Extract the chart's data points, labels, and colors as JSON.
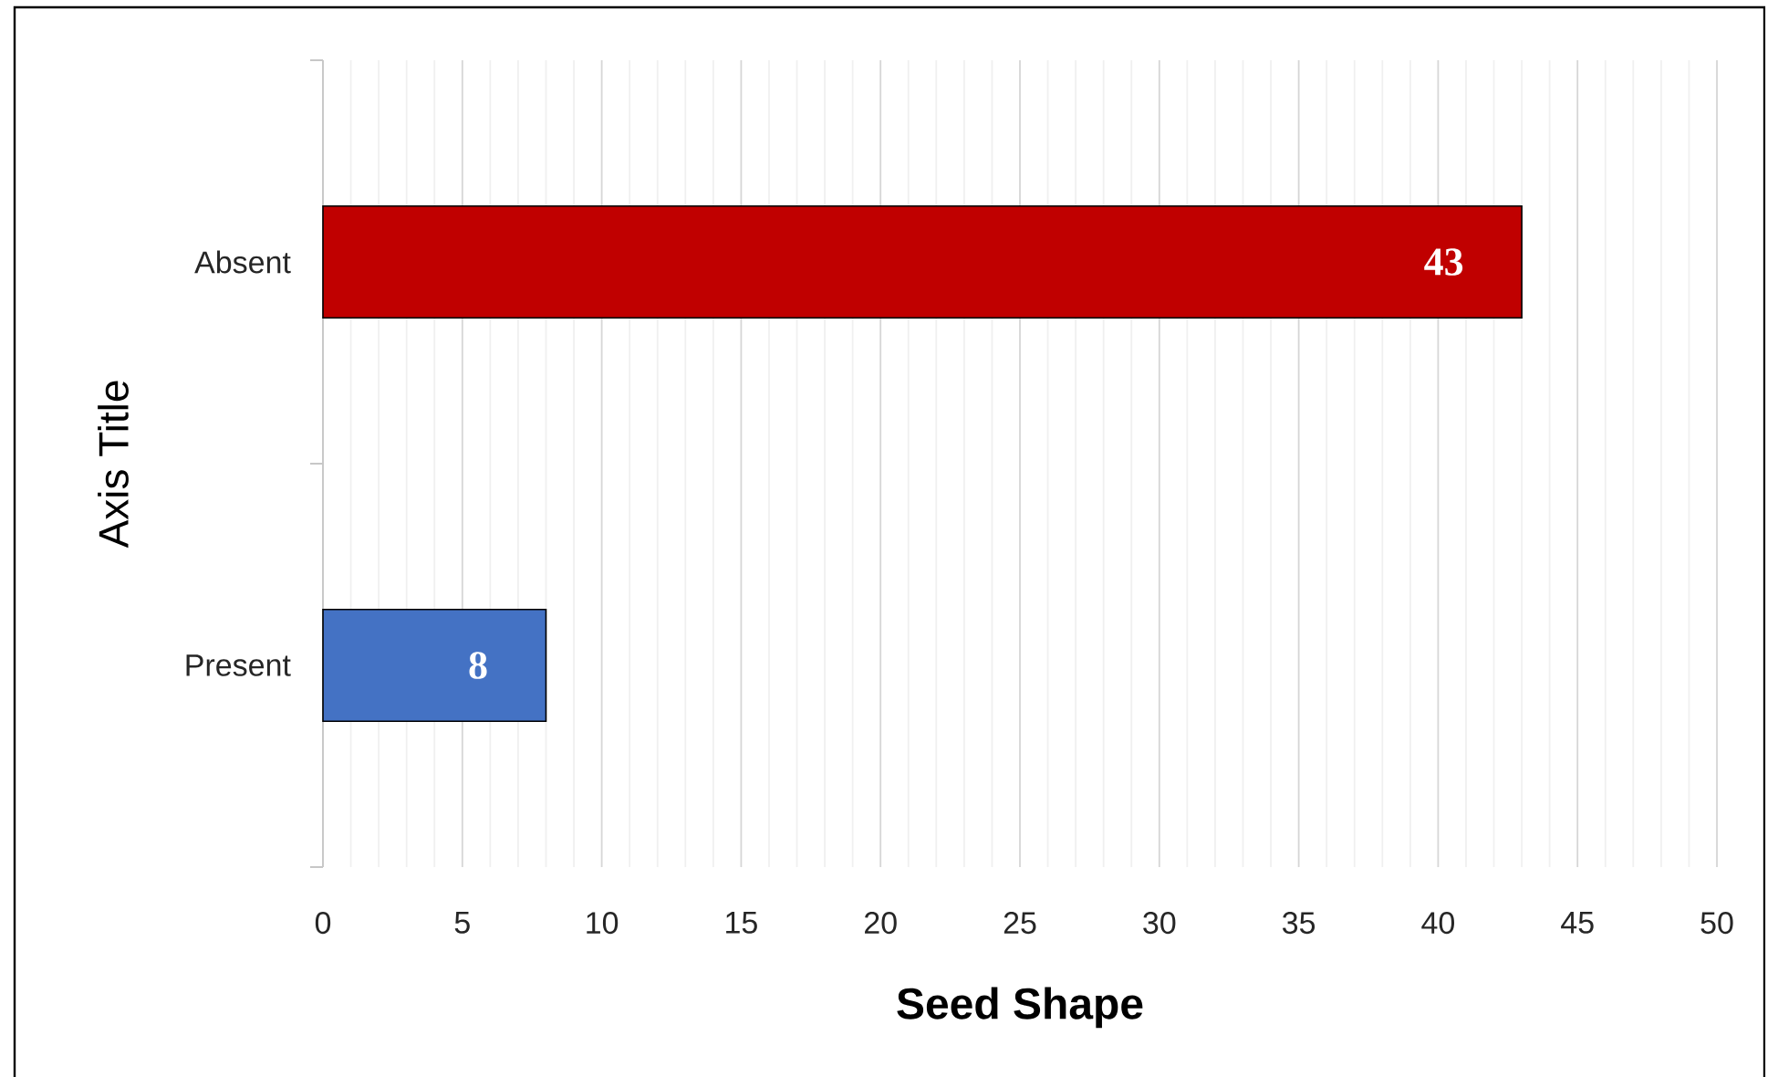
{
  "chart_data": {
    "type": "bar",
    "orientation": "horizontal",
    "xlabel": "Seed Shape",
    "ylabel": "Axis Title",
    "categories": [
      "Absent",
      "Present"
    ],
    "values": [
      43,
      8
    ],
    "colors": [
      "#c00000",
      "#4472c4"
    ],
    "xlim": [
      0,
      50
    ],
    "xticks": [
      0,
      5,
      10,
      15,
      20,
      25,
      30,
      35,
      40,
      45,
      50
    ],
    "grid": "x",
    "data_labels": true
  }
}
